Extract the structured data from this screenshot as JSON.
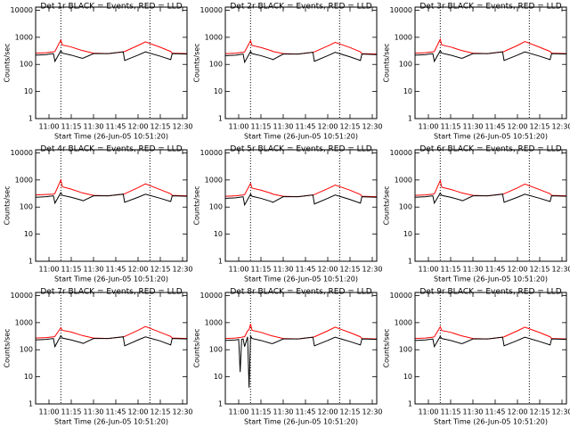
{
  "chart_data": [
    {
      "type": "line",
      "title": "Det 1r BLACK = Events, RED = LLD",
      "xlabel": "Start Time (26-Jun-05 10:51:20)",
      "ylabel": "Counts/sec",
      "log_y": true,
      "x": [
        "10:51",
        "10:58",
        "11:03",
        "11:04",
        "11:08",
        "11:09",
        "11:15",
        "11:22",
        "11:23",
        "11:30",
        "11:40",
        "11:50",
        "11:51",
        "12:00",
        "12:05",
        "12:15",
        "12:22",
        "12:23",
        "12:33"
      ],
      "series": [
        {
          "color": "#ff0000",
          "values": [
            260,
            270,
            290,
            300,
            800,
            520,
            440,
            330,
            320,
            260,
            250,
            290,
            300,
            500,
            680,
            430,
            300,
            260,
            250
          ]
        },
        {
          "color": "#000000",
          "values": [
            220,
            230,
            250,
            130,
            320,
            260,
            220,
            170,
            170,
            250,
            250,
            290,
            140,
            220,
            290,
            200,
            150,
            250,
            240
          ]
        }
      ],
      "xlim": [
        "10:51",
        "12:33"
      ],
      "xticks": [
        "11:00",
        "11:15",
        "11:30",
        "11:45",
        "12:00",
        "12:15",
        "12:30"
      ],
      "ylim": [
        1,
        13000
      ],
      "yticks": [
        1,
        10,
        100,
        1000,
        10000
      ],
      "vlines": [
        "11:08",
        "12:08"
      ]
    },
    {
      "type": "line",
      "title": "Det 2r BLACK = Events, RED = LLD",
      "xlabel": "Start Time (26-Jun-05 10:51:20)",
      "ylabel": "Counts/sec",
      "log_y": true,
      "x": [
        "10:51",
        "10:58",
        "11:03",
        "11:04",
        "11:08",
        "11:09",
        "11:15",
        "11:22",
        "11:23",
        "11:30",
        "11:40",
        "11:50",
        "11:51",
        "12:00",
        "12:05",
        "12:15",
        "12:22",
        "12:23",
        "12:33"
      ],
      "series": [
        {
          "color": "#ff0000",
          "values": [
            250,
            260,
            280,
            290,
            750,
            500,
            420,
            320,
            300,
            250,
            240,
            280,
            290,
            480,
            650,
            420,
            290,
            250,
            240
          ]
        },
        {
          "color": "#000000",
          "values": [
            210,
            220,
            240,
            120,
            300,
            250,
            210,
            160,
            150,
            240,
            240,
            280,
            130,
            210,
            280,
            190,
            140,
            240,
            230
          ]
        }
      ],
      "xlim": [
        "10:51",
        "12:33"
      ],
      "xticks": [
        "11:00",
        "11:15",
        "11:30",
        "11:45",
        "12:00",
        "12:15",
        "12:30"
      ],
      "ylim": [
        1,
        13000
      ],
      "yticks": [
        1,
        10,
        100,
        1000,
        10000
      ],
      "vlines": [
        "11:08",
        "12:08"
      ]
    },
    {
      "type": "line",
      "title": "Det 3r BLACK = Events, RED = LLD",
      "xlabel": "Start Time (26-Jun-05 10:51:20)",
      "ylabel": "Counts/sec",
      "log_y": true,
      "x": [
        "10:51",
        "10:58",
        "11:03",
        "11:04",
        "11:08",
        "11:09",
        "11:15",
        "11:22",
        "11:23",
        "11:30",
        "11:40",
        "11:50",
        "11:51",
        "12:00",
        "12:05",
        "12:15",
        "12:22",
        "12:23",
        "12:33"
      ],
      "series": [
        {
          "color": "#ff0000",
          "values": [
            260,
            270,
            290,
            300,
            850,
            520,
            440,
            330,
            320,
            260,
            250,
            290,
            300,
            500,
            700,
            430,
            300,
            260,
            250
          ]
        },
        {
          "color": "#000000",
          "values": [
            220,
            230,
            250,
            130,
            320,
            260,
            220,
            170,
            170,
            250,
            250,
            290,
            140,
            220,
            290,
            200,
            150,
            250,
            240
          ]
        }
      ],
      "xlim": [
        "10:51",
        "12:33"
      ],
      "xticks": [
        "11:00",
        "11:15",
        "11:30",
        "11:45",
        "12:00",
        "12:15",
        "12:30"
      ],
      "ylim": [
        1,
        13000
      ],
      "yticks": [
        1,
        10,
        100,
        1000,
        10000
      ],
      "vlines": [
        "11:08",
        "12:08"
      ]
    },
    {
      "type": "line",
      "title": "Det 4r BLACK = Events, RED = LLD",
      "xlabel": "Start Time (26-Jun-05 10:51:20)",
      "ylabel": "Counts/sec",
      "log_y": true,
      "x": [
        "10:51",
        "10:58",
        "11:03",
        "11:04",
        "11:08",
        "11:09",
        "11:15",
        "11:22",
        "11:23",
        "11:30",
        "11:40",
        "11:50",
        "11:51",
        "12:00",
        "12:05",
        "12:15",
        "12:22",
        "12:23",
        "12:33"
      ],
      "series": [
        {
          "color": "#ff0000",
          "values": [
            280,
            290,
            300,
            320,
            1000,
            560,
            460,
            340,
            330,
            270,
            260,
            300,
            310,
            520,
            720,
            440,
            310,
            270,
            260
          ]
        },
        {
          "color": "#000000",
          "values": [
            230,
            240,
            260,
            140,
            340,
            270,
            230,
            180,
            170,
            260,
            260,
            300,
            150,
            230,
            300,
            210,
            160,
            260,
            250
          ]
        }
      ],
      "xlim": [
        "10:51",
        "12:33"
      ],
      "xticks": [
        "11:00",
        "11:15",
        "11:30",
        "11:45",
        "12:00",
        "12:15",
        "12:30"
      ],
      "ylim": [
        1,
        13000
      ],
      "yticks": [
        1,
        10,
        100,
        1000,
        10000
      ],
      "vlines": [
        "11:08",
        "12:08"
      ]
    },
    {
      "type": "line",
      "title": "Det 5r BLACK = Events, RED = LLD",
      "xlabel": "Start Time (26-Jun-05 10:51:20)",
      "ylabel": "Counts/sec",
      "log_y": true,
      "x": [
        "10:51",
        "10:58",
        "11:03",
        "11:04",
        "11:08",
        "11:09",
        "11:15",
        "11:22",
        "11:23",
        "11:30",
        "11:40",
        "11:50",
        "11:51",
        "12:00",
        "12:05",
        "12:15",
        "12:22",
        "12:23",
        "12:33"
      ],
      "series": [
        {
          "color": "#ff0000",
          "values": [
            250,
            260,
            280,
            290,
            750,
            500,
            420,
            320,
            300,
            250,
            240,
            280,
            290,
            480,
            650,
            420,
            290,
            250,
            240
          ]
        },
        {
          "color": "#000000",
          "values": [
            210,
            220,
            240,
            120,
            300,
            250,
            210,
            160,
            150,
            240,
            240,
            280,
            130,
            210,
            280,
            190,
            140,
            240,
            230
          ]
        }
      ],
      "xlim": [
        "10:51",
        "12:33"
      ],
      "xticks": [
        "11:00",
        "11:15",
        "11:30",
        "11:45",
        "12:00",
        "12:15",
        "12:30"
      ],
      "ylim": [
        1,
        13000
      ],
      "yticks": [
        1,
        10,
        100,
        1000,
        10000
      ],
      "vlines": [
        "11:08",
        "12:08"
      ]
    },
    {
      "type": "line",
      "title": "Det 6r BLACK = Events, RED = LLD",
      "xlabel": "Start Time (26-Jun-05 10:51:20)",
      "ylabel": "Counts/sec",
      "log_y": true,
      "x": [
        "10:51",
        "10:58",
        "11:03",
        "11:04",
        "11:08",
        "11:09",
        "11:15",
        "11:22",
        "11:23",
        "11:30",
        "11:40",
        "11:50",
        "11:51",
        "12:00",
        "12:05",
        "12:15",
        "12:22",
        "12:23",
        "12:33"
      ],
      "series": [
        {
          "color": "#ff0000",
          "values": [
            270,
            280,
            300,
            310,
            950,
            540,
            450,
            340,
            330,
            270,
            260,
            300,
            310,
            510,
            710,
            440,
            310,
            270,
            260
          ]
        },
        {
          "color": "#000000",
          "values": [
            230,
            240,
            260,
            140,
            330,
            270,
            230,
            180,
            170,
            260,
            260,
            300,
            150,
            230,
            300,
            210,
            160,
            260,
            250
          ]
        }
      ],
      "xlim": [
        "10:51",
        "12:33"
      ],
      "xticks": [
        "11:00",
        "11:15",
        "11:30",
        "11:45",
        "12:00",
        "12:15",
        "12:30"
      ],
      "ylim": [
        1,
        13000
      ],
      "yticks": [
        1,
        10,
        100,
        1000,
        10000
      ],
      "vlines": [
        "11:08",
        "12:08"
      ]
    },
    {
      "type": "line",
      "title": "Det 7r BLACK = Events, RED = LLD",
      "xlabel": "Start Time (26-Jun-05 10:51:20)",
      "ylabel": "Counts/sec",
      "log_y": true,
      "x": [
        "10:51",
        "10:58",
        "11:03",
        "11:04",
        "11:08",
        "11:09",
        "11:15",
        "11:22",
        "11:23",
        "11:30",
        "11:40",
        "11:50",
        "11:51",
        "12:00",
        "12:05",
        "12:15",
        "12:22",
        "12:23",
        "12:33"
      ],
      "series": [
        {
          "color": "#ff0000",
          "values": [
            270,
            280,
            300,
            310,
            650,
            520,
            450,
            340,
            330,
            270,
            260,
            300,
            310,
            520,
            720,
            440,
            310,
            270,
            260
          ]
        },
        {
          "color": "#000000",
          "values": [
            230,
            240,
            260,
            130,
            330,
            270,
            230,
            180,
            170,
            260,
            260,
            300,
            140,
            230,
            300,
            210,
            150,
            260,
            250
          ]
        }
      ],
      "xlim": [
        "10:51",
        "12:33"
      ],
      "xticks": [
        "11:00",
        "11:15",
        "11:30",
        "11:45",
        "12:00",
        "12:15",
        "12:30"
      ],
      "ylim": [
        1,
        13000
      ],
      "yticks": [
        1,
        10,
        100,
        1000,
        10000
      ],
      "vlines": [
        "11:08",
        "12:08"
      ]
    },
    {
      "type": "line",
      "title": "Det 8r BLACK = Events, RED = LLD",
      "xlabel": "Start Time (26-Jun-05 10:51:20)",
      "ylabel": "Counts/sec",
      "log_y": true,
      "x": [
        "10:51",
        "10:58",
        "11:00",
        "11:01",
        "11:02",
        "11:03",
        "11:04",
        "11:06",
        "11:07",
        "11:08",
        "11:09",
        "11:15",
        "11:22",
        "11:23",
        "11:30",
        "11:40",
        "11:50",
        "11:51",
        "12:00",
        "12:05",
        "12:15",
        "12:22",
        "12:23",
        "12:33"
      ],
      "series": [
        {
          "color": "#ff0000",
          "values": [
            260,
            270,
            280,
            280,
            290,
            300,
            300,
            500,
            550,
            900,
            520,
            440,
            330,
            320,
            260,
            250,
            290,
            300,
            500,
            680,
            430,
            300,
            260,
            250
          ]
        },
        {
          "color": "#000000",
          "values": [
            220,
            230,
            240,
            15,
            240,
            250,
            130,
            300,
            4,
            320,
            260,
            220,
            170,
            170,
            250,
            250,
            290,
            140,
            220,
            290,
            200,
            150,
            250,
            240
          ]
        }
      ],
      "xlim": [
        "10:51",
        "12:33"
      ],
      "xticks": [
        "11:00",
        "11:15",
        "11:30",
        "11:45",
        "12:00",
        "12:15",
        "12:30"
      ],
      "ylim": [
        1,
        13000
      ],
      "yticks": [
        1,
        10,
        100,
        1000,
        10000
      ],
      "vlines": [
        "11:08",
        "12:08"
      ]
    },
    {
      "type": "line",
      "title": "Det 9r BLACK = Events, RED = LLD",
      "xlabel": "Start Time (26-Jun-05 10:51:20)",
      "ylabel": "Counts/sec",
      "log_y": true,
      "x": [
        "10:51",
        "10:58",
        "11:03",
        "11:04",
        "11:08",
        "11:09",
        "11:15",
        "11:22",
        "11:23",
        "11:30",
        "11:40",
        "11:50",
        "11:51",
        "12:00",
        "12:05",
        "12:15",
        "12:22",
        "12:23",
        "12:33"
      ],
      "series": [
        {
          "color": "#ff0000",
          "values": [
            260,
            270,
            290,
            300,
            700,
            510,
            440,
            330,
            320,
            260,
            250,
            290,
            300,
            500,
            680,
            430,
            300,
            260,
            250
          ]
        },
        {
          "color": "#000000",
          "values": [
            220,
            230,
            250,
            130,
            310,
            260,
            220,
            170,
            170,
            250,
            250,
            290,
            140,
            220,
            290,
            200,
            150,
            250,
            240
          ]
        }
      ],
      "xlim": [
        "10:51",
        "12:33"
      ],
      "xticks": [
        "11:00",
        "11:15",
        "11:30",
        "11:45",
        "12:00",
        "12:15",
        "12:30"
      ],
      "ylim": [
        1,
        13000
      ],
      "yticks": [
        1,
        10,
        100,
        1000,
        10000
      ],
      "vlines": [
        "11:08",
        "12:08"
      ]
    }
  ]
}
